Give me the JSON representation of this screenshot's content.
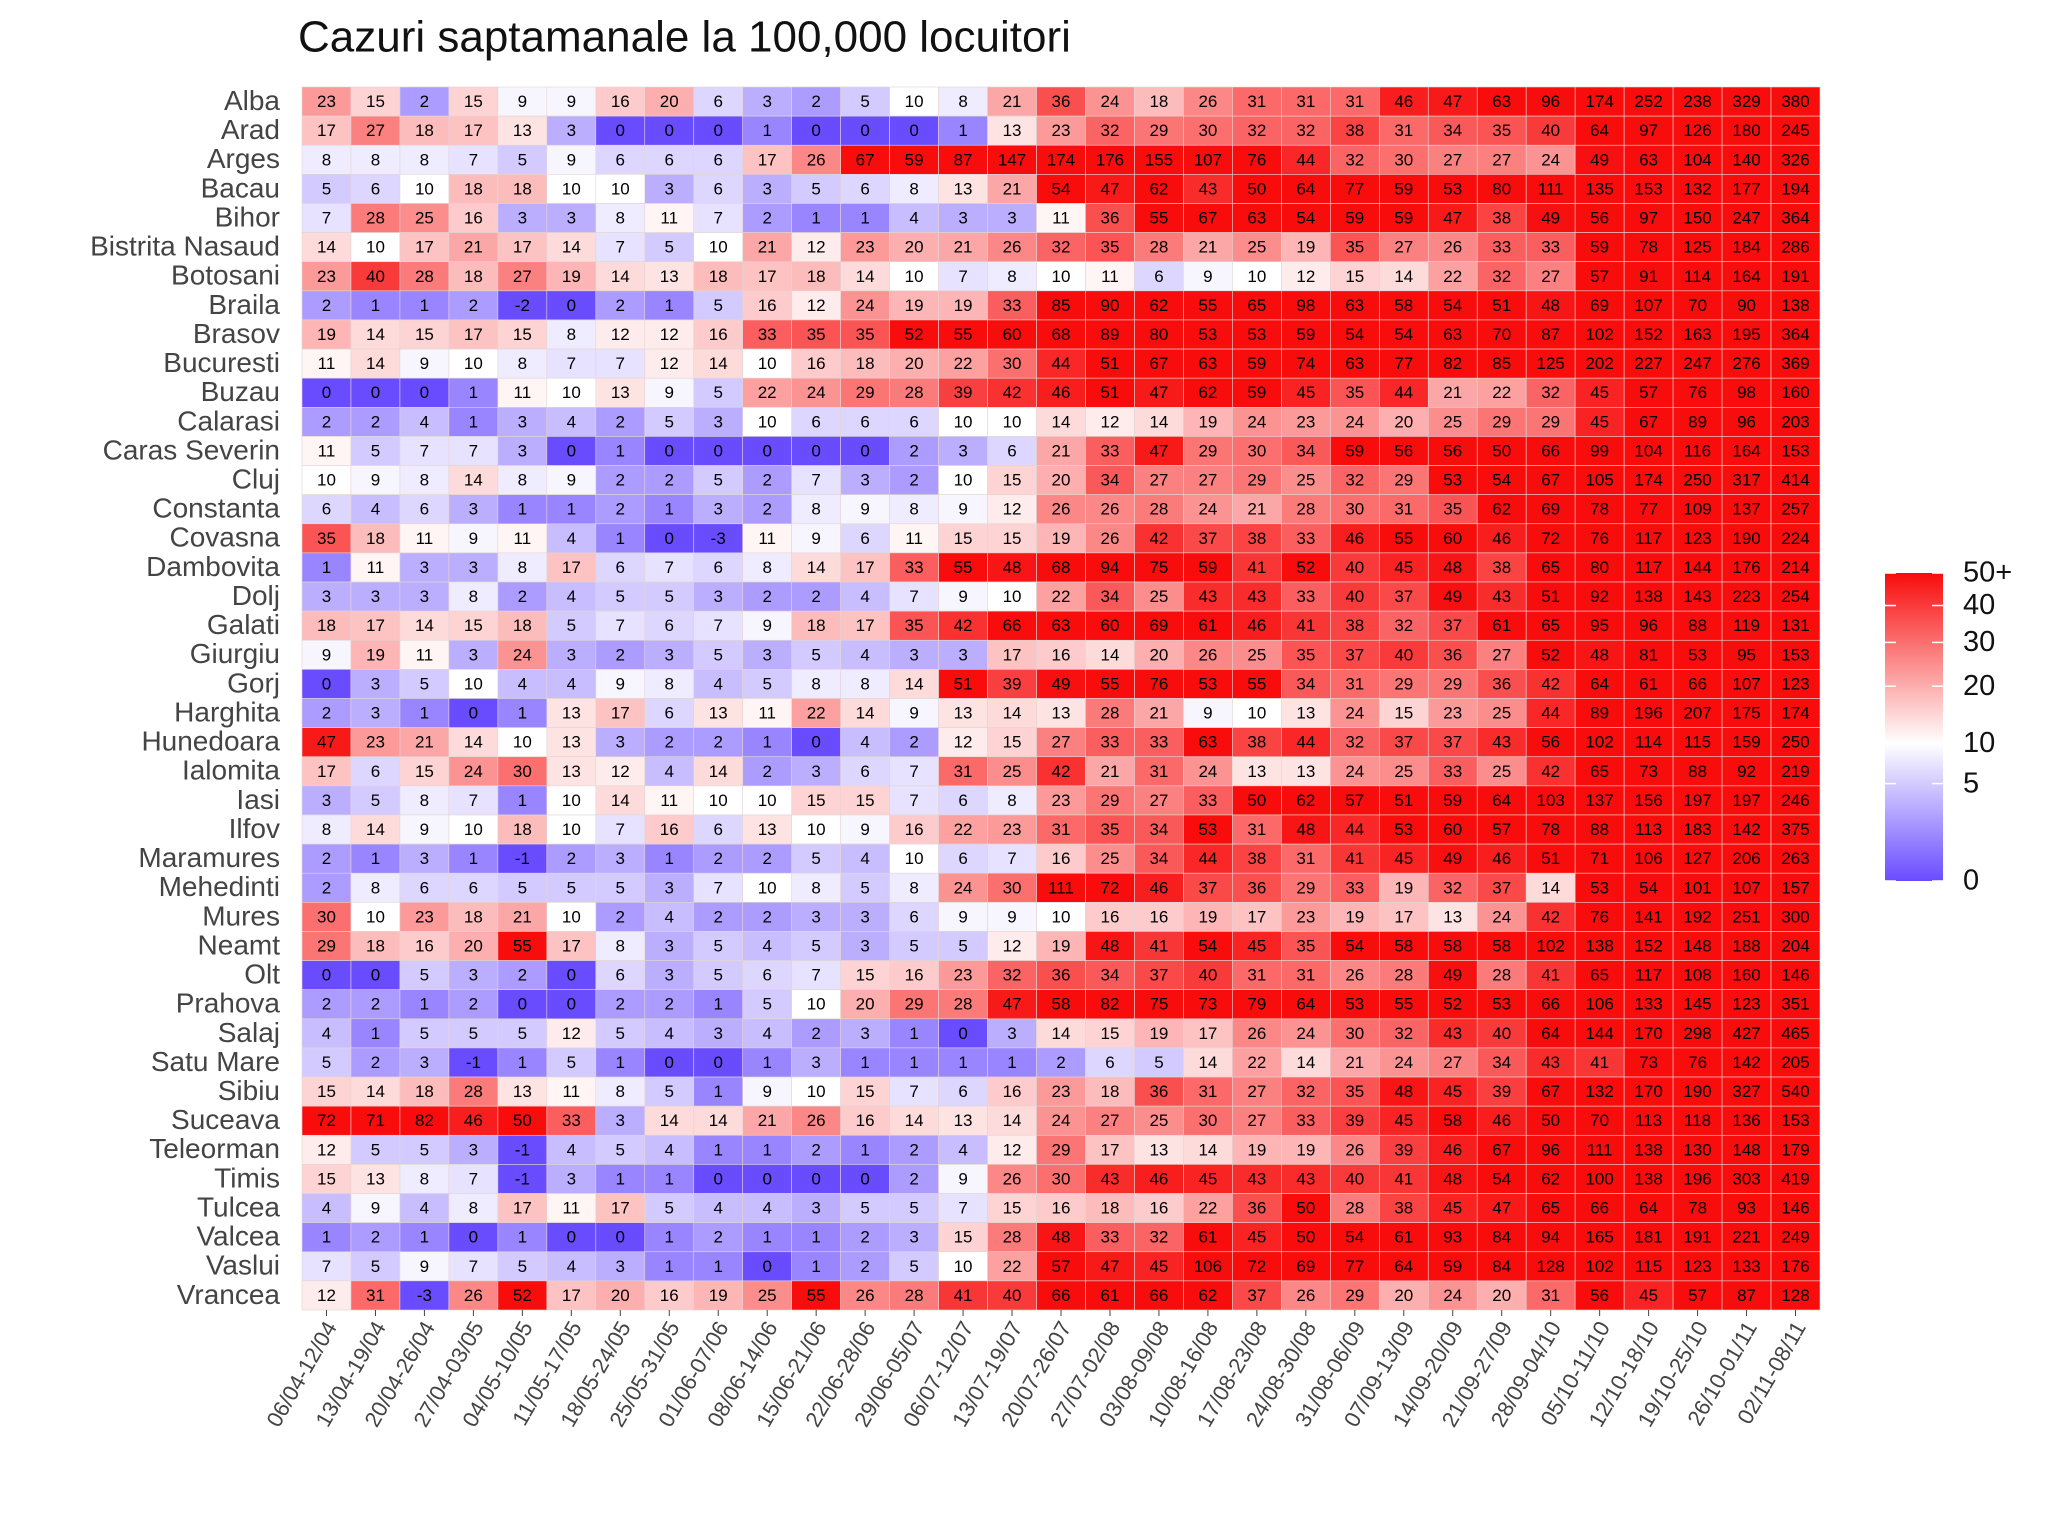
{
  "chart_data": {
    "type": "heatmap",
    "title": "Cazuri saptamanale la 100,000 locuitori",
    "x": [
      "06/04-12/04",
      "13/04-19/04",
      "20/04-26/04",
      "27/04-03/05",
      "04/05-10/05",
      "11/05-17/05",
      "18/05-24/05",
      "25/05-31/05",
      "01/06-07/06",
      "08/06-14/06",
      "15/06-21/06",
      "22/06-28/06",
      "29/06-05/07",
      "06/07-12/07",
      "13/07-19/07",
      "20/07-26/07",
      "27/07-02/08",
      "03/08-09/08",
      "10/08-16/08",
      "17/08-23/08",
      "24/08-30/08",
      "31/08-06/09",
      "07/09-13/09",
      "14/09-20/09",
      "21/09-27/09",
      "28/09-04/10",
      "05/10-11/10",
      "12/10-18/10",
      "19/10-25/10",
      "26/10-01/11",
      "02/11-08/11"
    ],
    "y": [
      "Alba",
      "Arad",
      "Arges",
      "Bacau",
      "Bihor",
      "Bistrita Nasaud",
      "Botosani",
      "Braila",
      "Brasov",
      "Bucuresti",
      "Buzau",
      "Calarasi",
      "Caras Severin",
      "Cluj",
      "Constanta",
      "Covasna",
      "Dambovita",
      "Dolj",
      "Galati",
      "Giurgiu",
      "Gorj",
      "Harghita",
      "Hunedoara",
      "Ialomita",
      "Iasi",
      "Ilfov",
      "Maramures",
      "Mehedinti",
      "Mures",
      "Neamt",
      "Olt",
      "Prahova",
      "Salaj",
      "Satu Mare",
      "Sibiu",
      "Suceava",
      "Teleorman",
      "Timis",
      "Tulcea",
      "Valcea",
      "Vaslui",
      "Vrancea"
    ],
    "values": [
      [
        23,
        15,
        2,
        15,
        9,
        9,
        16,
        20,
        6,
        3,
        2,
        5,
        10,
        8,
        21,
        36,
        24,
        18,
        26,
        31,
        31,
        31,
        46,
        47,
        63,
        96,
        174,
        252,
        238,
        329,
        380
      ],
      [
        17,
        27,
        18,
        17,
        13,
        3,
        0,
        0,
        0,
        1,
        0,
        0,
        0,
        1,
        13,
        23,
        32,
        29,
        30,
        32,
        32,
        38,
        31,
        34,
        35,
        40,
        64,
        97,
        126,
        180,
        245
      ],
      [
        8,
        8,
        8,
        7,
        5,
        9,
        6,
        6,
        6,
        17,
        26,
        67,
        59,
        87,
        147,
        174,
        176,
        155,
        107,
        76,
        44,
        32,
        30,
        27,
        27,
        24,
        49,
        63,
        104,
        140,
        326
      ],
      [
        5,
        6,
        10,
        18,
        18,
        10,
        10,
        3,
        6,
        3,
        5,
        6,
        8,
        13,
        21,
        54,
        47,
        62,
        43,
        50,
        64,
        77,
        59,
        53,
        80,
        111,
        135,
        153,
        132,
        177,
        194
      ],
      [
        7,
        28,
        25,
        16,
        3,
        3,
        8,
        11,
        7,
        2,
        1,
        1,
        4,
        3,
        3,
        11,
        36,
        55,
        67,
        63,
        54,
        59,
        59,
        47,
        38,
        49,
        56,
        97,
        150,
        247,
        364
      ],
      [
        14,
        10,
        17,
        21,
        17,
        14,
        7,
        5,
        10,
        21,
        12,
        23,
        20,
        21,
        26,
        32,
        35,
        28,
        21,
        25,
        19,
        35,
        27,
        26,
        33,
        33,
        59,
        78,
        125,
        184,
        286
      ],
      [
        23,
        40,
        28,
        18,
        27,
        19,
        14,
        13,
        18,
        17,
        18,
        14,
        10,
        7,
        8,
        10,
        11,
        6,
        9,
        10,
        12,
        15,
        14,
        22,
        32,
        27,
        57,
        91,
        114,
        164,
        191
      ],
      [
        2,
        1,
        1,
        2,
        -2,
        0,
        2,
        1,
        5,
        16,
        12,
        24,
        19,
        19,
        33,
        85,
        90,
        62,
        55,
        65,
        98,
        63,
        58,
        54,
        51,
        48,
        69,
        107,
        70,
        90,
        138
      ],
      [
        19,
        14,
        15,
        17,
        15,
        8,
        12,
        12,
        16,
        33,
        35,
        35,
        52,
        55,
        60,
        68,
        89,
        80,
        53,
        53,
        59,
        54,
        54,
        63,
        70,
        87,
        102,
        152,
        163,
        195,
        364
      ],
      [
        11,
        14,
        9,
        10,
        8,
        7,
        7,
        12,
        14,
        10,
        16,
        18,
        20,
        22,
        30,
        44,
        51,
        67,
        63,
        59,
        74,
        63,
        77,
        82,
        85,
        125,
        202,
        227,
        247,
        276,
        369
      ],
      [
        0,
        0,
        0,
        1,
        11,
        10,
        13,
        9,
        5,
        22,
        24,
        29,
        28,
        39,
        42,
        46,
        51,
        47,
        62,
        59,
        45,
        35,
        44,
        21,
        22,
        32,
        45,
        57,
        76,
        98,
        160
      ],
      [
        2,
        2,
        4,
        1,
        3,
        4,
        2,
        5,
        3,
        10,
        6,
        6,
        6,
        10,
        10,
        14,
        12,
        14,
        19,
        24,
        23,
        24,
        20,
        25,
        29,
        29,
        45,
        67,
        89,
        96,
        203
      ],
      [
        11,
        5,
        7,
        7,
        3,
        0,
        1,
        0,
        0,
        0,
        0,
        0,
        2,
        3,
        6,
        21,
        33,
        47,
        29,
        30,
        34,
        59,
        56,
        56,
        50,
        66,
        99,
        104,
        116,
        164,
        153
      ],
      [
        10,
        9,
        8,
        14,
        8,
        9,
        2,
        2,
        5,
        2,
        7,
        3,
        2,
        10,
        15,
        20,
        34,
        27,
        27,
        29,
        25,
        32,
        29,
        53,
        54,
        67,
        105,
        174,
        250,
        317,
        414
      ],
      [
        6,
        4,
        6,
        3,
        1,
        1,
        2,
        1,
        3,
        2,
        8,
        9,
        8,
        9,
        12,
        26,
        26,
        28,
        24,
        21,
        28,
        30,
        31,
        35,
        62,
        69,
        78,
        77,
        109,
        137,
        257
      ],
      [
        35,
        18,
        11,
        9,
        11,
        4,
        1,
        0,
        -3,
        11,
        9,
        6,
        11,
        15,
        15,
        19,
        26,
        42,
        37,
        38,
        33,
        46,
        55,
        60,
        46,
        72,
        76,
        117,
        123,
        190,
        224
      ],
      [
        1,
        11,
        3,
        3,
        8,
        17,
        6,
        7,
        6,
        8,
        14,
        17,
        33,
        55,
        48,
        68,
        94,
        75,
        59,
        41,
        52,
        40,
        45,
        48,
        38,
        65,
        80,
        117,
        144,
        176,
        214
      ],
      [
        3,
        3,
        3,
        8,
        2,
        4,
        5,
        5,
        3,
        2,
        2,
        4,
        7,
        9,
        10,
        22,
        34,
        25,
        43,
        43,
        33,
        40,
        37,
        49,
        43,
        51,
        92,
        138,
        143,
        223,
        254
      ],
      [
        18,
        17,
        14,
        15,
        18,
        5,
        7,
        6,
        7,
        9,
        18,
        17,
        35,
        42,
        66,
        63,
        60,
        69,
        61,
        46,
        41,
        38,
        32,
        37,
        61,
        65,
        95,
        96,
        88,
        119,
        131
      ],
      [
        9,
        19,
        11,
        3,
        24,
        3,
        2,
        3,
        5,
        3,
        5,
        4,
        3,
        3,
        17,
        16,
        14,
        20,
        26,
        25,
        35,
        37,
        40,
        36,
        27,
        52,
        48,
        81,
        53,
        95,
        153
      ],
      [
        0,
        3,
        5,
        10,
        4,
        4,
        9,
        8,
        4,
        5,
        8,
        8,
        14,
        51,
        39,
        49,
        55,
        76,
        53,
        55,
        34,
        31,
        29,
        29,
        36,
        42,
        64,
        61,
        66,
        107,
        123
      ],
      [
        2,
        3,
        1,
        0,
        1,
        13,
        17,
        6,
        13,
        11,
        22,
        14,
        9,
        13,
        14,
        13,
        28,
        21,
        9,
        10,
        13,
        24,
        15,
        23,
        25,
        44,
        89,
        196,
        207,
        175,
        174
      ],
      [
        47,
        23,
        21,
        14,
        10,
        13,
        3,
        2,
        2,
        1,
        0,
        4,
        2,
        12,
        15,
        27,
        33,
        33,
        63,
        38,
        44,
        32,
        37,
        37,
        43,
        56,
        102,
        114,
        115,
        159,
        250
      ],
      [
        17,
        6,
        15,
        24,
        30,
        13,
        12,
        4,
        14,
        2,
        3,
        6,
        7,
        31,
        25,
        42,
        21,
        31,
        24,
        13,
        13,
        24,
        25,
        33,
        25,
        42,
        65,
        73,
        88,
        92,
        219
      ],
      [
        3,
        5,
        8,
        7,
        1,
        10,
        14,
        11,
        10,
        10,
        15,
        15,
        7,
        6,
        8,
        23,
        29,
        27,
        33,
        50,
        62,
        57,
        51,
        59,
        64,
        103,
        137,
        156,
        197,
        197,
        246
      ],
      [
        8,
        14,
        9,
        10,
        18,
        10,
        7,
        16,
        6,
        13,
        10,
        9,
        16,
        22,
        23,
        31,
        35,
        34,
        53,
        31,
        48,
        44,
        53,
        60,
        57,
        78,
        88,
        113,
        183,
        142,
        375
      ],
      [
        2,
        1,
        3,
        1,
        -1,
        2,
        3,
        1,
        2,
        2,
        5,
        4,
        10,
        6,
        7,
        16,
        25,
        34,
        44,
        38,
        31,
        41,
        45,
        49,
        46,
        51,
        71,
        106,
        127,
        206,
        263
      ],
      [
        2,
        8,
        6,
        6,
        5,
        5,
        5,
        3,
        7,
        10,
        8,
        5,
        8,
        24,
        30,
        111,
        72,
        46,
        37,
        36,
        29,
        33,
        19,
        32,
        37,
        14,
        53,
        54,
        101,
        107,
        157
      ],
      [
        30,
        10,
        23,
        18,
        21,
        10,
        2,
        4,
        2,
        2,
        3,
        3,
        6,
        9,
        9,
        10,
        16,
        16,
        19,
        17,
        23,
        19,
        17,
        13,
        24,
        42,
        76,
        141,
        192,
        251,
        300
      ],
      [
        29,
        18,
        16,
        20,
        55,
        17,
        8,
        3,
        5,
        4,
        5,
        3,
        5,
        5,
        12,
        19,
        48,
        41,
        54,
        45,
        35,
        54,
        58,
        58,
        58,
        102,
        138,
        152,
        148,
        188,
        204
      ],
      [
        0,
        0,
        5,
        3,
        2,
        0,
        6,
        3,
        5,
        6,
        7,
        15,
        16,
        23,
        32,
        36,
        34,
        37,
        40,
        31,
        31,
        26,
        28,
        49,
        28,
        41,
        65,
        117,
        108,
        160,
        146
      ],
      [
        2,
        2,
        1,
        2,
        0,
        0,
        2,
        2,
        1,
        5,
        10,
        20,
        29,
        28,
        47,
        58,
        82,
        75,
        73,
        79,
        64,
        53,
        55,
        52,
        53,
        66,
        106,
        133,
        145,
        123,
        351
      ],
      [
        4,
        1,
        5,
        5,
        5,
        12,
        5,
        4,
        3,
        4,
        2,
        3,
        1,
        0,
        3,
        14,
        15,
        19,
        17,
        26,
        24,
        30,
        32,
        43,
        40,
        64,
        144,
        170,
        298,
        427,
        465
      ],
      [
        5,
        2,
        3,
        -1,
        1,
        5,
        1,
        0,
        0,
        1,
        3,
        1,
        1,
        1,
        1,
        2,
        6,
        5,
        14,
        22,
        14,
        21,
        24,
        27,
        34,
        43,
        41,
        73,
        76,
        142,
        205
      ],
      [
        15,
        14,
        18,
        28,
        13,
        11,
        8,
        5,
        1,
        9,
        10,
        15,
        7,
        6,
        16,
        23,
        18,
        36,
        31,
        27,
        32,
        35,
        48,
        45,
        39,
        67,
        132,
        170,
        190,
        327,
        540
      ],
      [
        72,
        71,
        82,
        46,
        50,
        33,
        3,
        14,
        14,
        21,
        26,
        16,
        14,
        13,
        14,
        24,
        27,
        25,
        30,
        27,
        33,
        39,
        45,
        58,
        46,
        50,
        70,
        113,
        118,
        136,
        153
      ],
      [
        12,
        5,
        5,
        3,
        -1,
        4,
        5,
        4,
        1,
        1,
        2,
        1,
        2,
        4,
        12,
        29,
        17,
        13,
        14,
        19,
        19,
        26,
        39,
        46,
        67,
        96,
        111,
        138,
        130,
        148,
        179
      ],
      [
        15,
        13,
        8,
        7,
        -1,
        3,
        1,
        1,
        0,
        0,
        0,
        0,
        2,
        9,
        26,
        30,
        43,
        46,
        45,
        43,
        43,
        40,
        41,
        48,
        54,
        62,
        100,
        138,
        196,
        303,
        419
      ],
      [
        4,
        9,
        4,
        8,
        17,
        11,
        17,
        5,
        4,
        4,
        3,
        5,
        5,
        7,
        15,
        16,
        18,
        16,
        22,
        36,
        50,
        28,
        38,
        45,
        47,
        65,
        66,
        64,
        78,
        93,
        146
      ],
      [
        1,
        2,
        1,
        0,
        1,
        0,
        0,
        1,
        2,
        1,
        1,
        2,
        3,
        15,
        28,
        48,
        33,
        32,
        61,
        45,
        50,
        54,
        61,
        93,
        84,
        94,
        165,
        181,
        191,
        221,
        249
      ],
      [
        7,
        5,
        9,
        7,
        5,
        4,
        3,
        1,
        1,
        0,
        1,
        2,
        5,
        10,
        22,
        57,
        47,
        45,
        106,
        72,
        69,
        77,
        64,
        59,
        84,
        128,
        102,
        115,
        123,
        133,
        176
      ],
      [
        12,
        31,
        -3,
        26,
        52,
        17,
        20,
        16,
        19,
        25,
        55,
        26,
        28,
        41,
        40,
        66,
        61,
        66,
        62,
        37,
        26,
        29,
        20,
        24,
        20,
        31,
        56,
        45,
        57,
        87,
        128
      ]
    ],
    "color_scale": {
      "transform": "sqrt",
      "lim": [
        0,
        50
      ],
      "stops": [
        0,
        10,
        50
      ],
      "colors": [
        "#6a4cff",
        "#ffffff",
        "#f80c0c"
      ],
      "ticks": [
        0,
        5,
        10,
        20,
        30,
        40,
        {
          "value": 50,
          "label": "50+"
        }
      ]
    }
  }
}
